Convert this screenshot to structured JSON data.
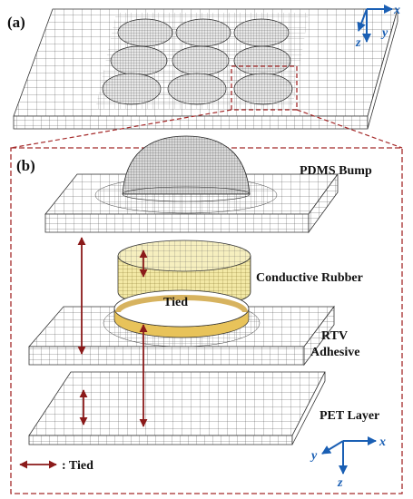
{
  "panel_a": {
    "label": "(a)"
  },
  "panel_b": {
    "label": "(b)"
  },
  "layers": {
    "pdms": "PDMS Bump",
    "rubber": "Conductive Rubber",
    "tied": "Tied",
    "rtv_line1": "RTV",
    "rtv_line2": "Adhesive",
    "pet": "PET Layer"
  },
  "legend": {
    "text": ": Tied"
  },
  "axes_top": {
    "x": "x",
    "y": "y",
    "z": "z"
  },
  "axes_bottom": {
    "x": "x",
    "y": "y",
    "z": "z"
  },
  "colors": {
    "dashed_frame": "#a52a2a",
    "arrow": "#8b1a1a",
    "axis": "#1a5fb4",
    "rubber": "#f3e9a6",
    "rubber_inner": "#e0b84a",
    "mesh": "#444444"
  }
}
